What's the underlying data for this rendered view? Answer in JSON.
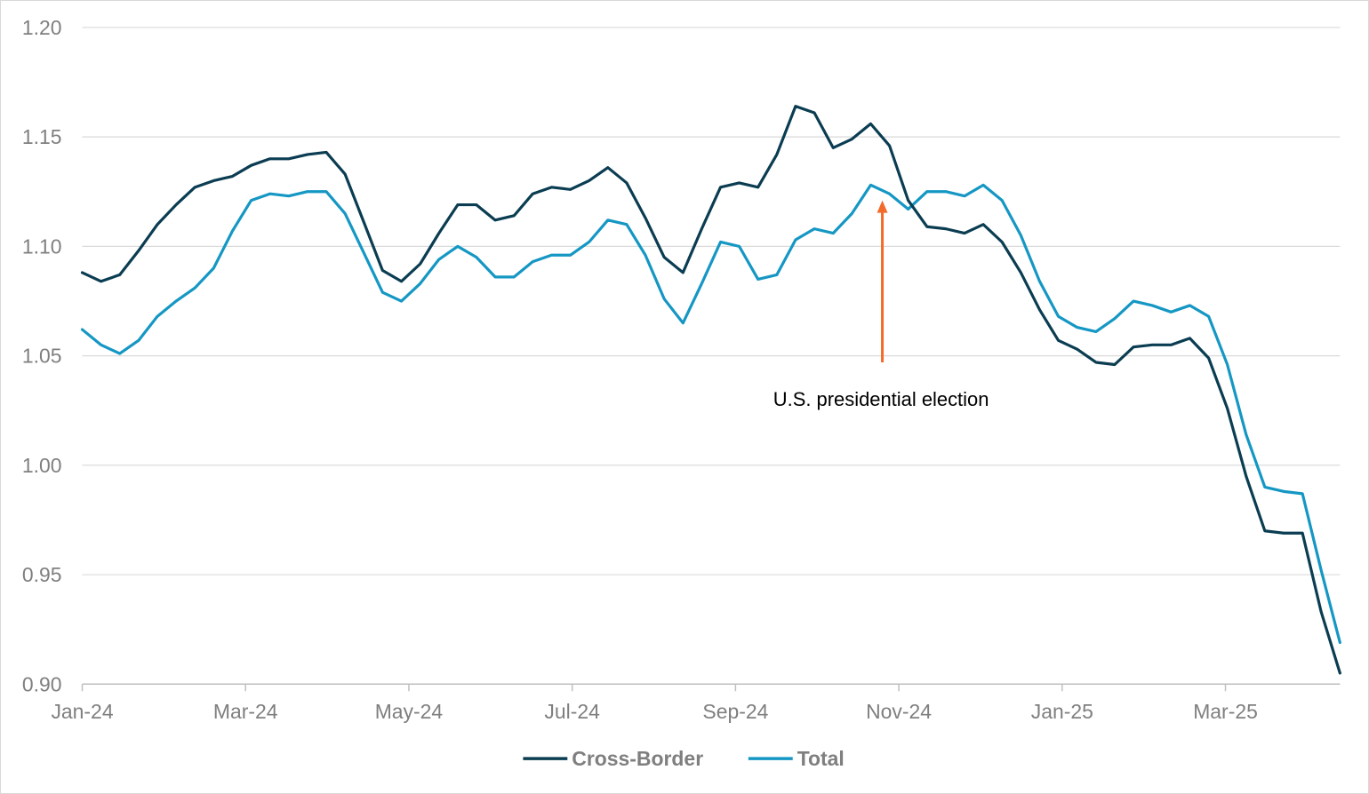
{
  "chart_data": {
    "type": "line",
    "ylim": [
      0.9,
      1.2
    ],
    "y_ticks": [
      "0.90",
      "0.95",
      "1.00",
      "1.05",
      "1.10",
      "1.15",
      "1.20"
    ],
    "x_tick_labels": [
      "Jan-24",
      "Mar-24",
      "May-24",
      "Jul-24",
      "Sep-24",
      "Nov-24",
      "Jan-25",
      "Mar-25"
    ],
    "grid": "horizontal",
    "legend_position": "bottom",
    "colors": {
      "cross_border": "#0b3d52",
      "total": "#1597c4",
      "annotation": "#f26b2a"
    },
    "series": [
      {
        "name": "Cross-Border",
        "values": [
          1.088,
          1.084,
          1.087,
          1.098,
          1.11,
          1.119,
          1.127,
          1.13,
          1.132,
          1.137,
          1.14,
          1.14,
          1.142,
          1.143,
          1.133,
          1.111,
          1.089,
          1.084,
          1.092,
          1.106,
          1.119,
          1.119,
          1.112,
          1.114,
          1.124,
          1.127,
          1.126,
          1.13,
          1.136,
          1.129,
          1.113,
          1.095,
          1.088,
          1.108,
          1.127,
          1.129,
          1.127,
          1.142,
          1.164,
          1.161,
          1.145,
          1.149,
          1.156,
          1.146,
          1.121,
          1.109,
          1.108,
          1.106,
          1.11,
          1.102,
          1.088,
          1.071,
          1.057,
          1.053,
          1.047,
          1.046,
          1.054,
          1.055,
          1.055,
          1.058,
          1.049,
          1.026,
          0.995,
          0.97,
          0.969,
          0.969,
          0.933,
          0.905
        ]
      },
      {
        "name": "Total",
        "values": [
          1.062,
          1.055,
          1.051,
          1.057,
          1.068,
          1.075,
          1.081,
          1.09,
          1.107,
          1.121,
          1.124,
          1.123,
          1.125,
          1.125,
          1.115,
          1.097,
          1.079,
          1.075,
          1.083,
          1.094,
          1.1,
          1.095,
          1.086,
          1.086,
          1.093,
          1.096,
          1.096,
          1.102,
          1.112,
          1.11,
          1.096,
          1.076,
          1.065,
          1.083,
          1.102,
          1.1,
          1.085,
          1.087,
          1.103,
          1.108,
          1.106,
          1.115,
          1.128,
          1.124,
          1.117,
          1.125,
          1.125,
          1.123,
          1.128,
          1.121,
          1.105,
          1.084,
          1.068,
          1.063,
          1.061,
          1.067,
          1.075,
          1.073,
          1.07,
          1.073,
          1.068,
          1.046,
          1.014,
          0.99,
          0.988,
          0.987,
          0.952,
          0.919
        ]
      }
    ],
    "annotation": {
      "text": "U.S. presidential election",
      "point_index": 43,
      "value": 1.121,
      "tail_value": 1.047
    }
  }
}
